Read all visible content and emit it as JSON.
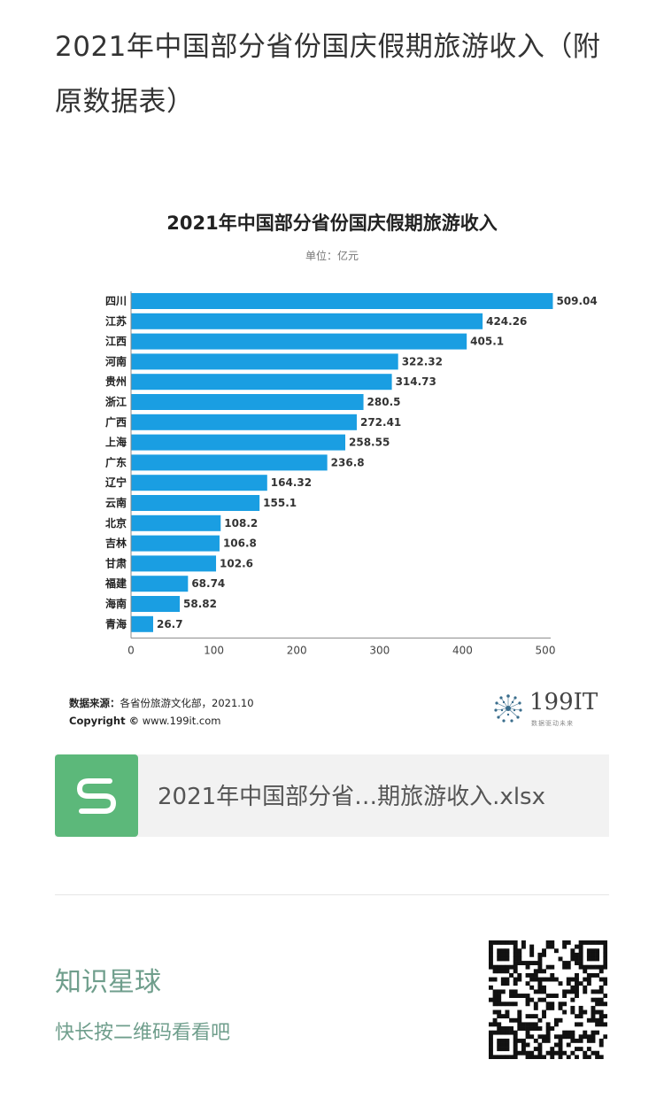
{
  "article": {
    "title": "2021年中国部分省份国庆假期旅游收入（附原数据表）"
  },
  "chart": {
    "title": "2021年中国部分省份国庆假期旅游收入",
    "unit": "单位：亿元",
    "source_label": "数据来源：",
    "source_value": "各省份旅游文化部，2021.10",
    "copyright_label": "Copyright ©",
    "copyright_value": "www.199it.com",
    "logo_text": "199IT",
    "logo_sub": "数据驱动未来",
    "bar_color": "#1a9ee2"
  },
  "chart_data": {
    "type": "bar",
    "orientation": "horizontal",
    "title": "2021年中国部分省份国庆假期旅游收入",
    "subtitle": "单位：亿元",
    "categories": [
      "四川",
      "江苏",
      "江西",
      "河南",
      "贵州",
      "浙江",
      "广西",
      "上海",
      "广东",
      "辽宁",
      "云南",
      "北京",
      "吉林",
      "甘肃",
      "福建",
      "海南",
      "青海"
    ],
    "values": [
      509.04,
      424.26,
      405.1,
      322.32,
      314.73,
      280.5,
      272.41,
      258.55,
      236.8,
      164.32,
      155.1,
      108.2,
      106.8,
      102.6,
      68.74,
      58.82,
      26.7
    ],
    "value_labels": [
      "509.04",
      "424.26",
      "405.1",
      "322.32",
      "314.73",
      "280.5",
      "272.41",
      "258.55",
      "236.8",
      "164.32",
      "155.1",
      "108.2",
      "106.8",
      "102.6",
      "68.74",
      "58.82",
      "26.7"
    ],
    "xlim": [
      0,
      500
    ],
    "xticks": [
      "0",
      "100",
      "200",
      "300",
      "400",
      "500"
    ],
    "grid": false,
    "legend": "none"
  },
  "attachment": {
    "icon": "spreadsheet-s-icon",
    "file_name": "2021年中国部分省…期旅游收入.xlsx",
    "icon_color": "#5cb87a"
  },
  "promo": {
    "title": "知识星球",
    "subtitle": "快长按二维码看看吧",
    "qr_icon": "qr-code-icon",
    "text_color": "#6f9e8c"
  }
}
